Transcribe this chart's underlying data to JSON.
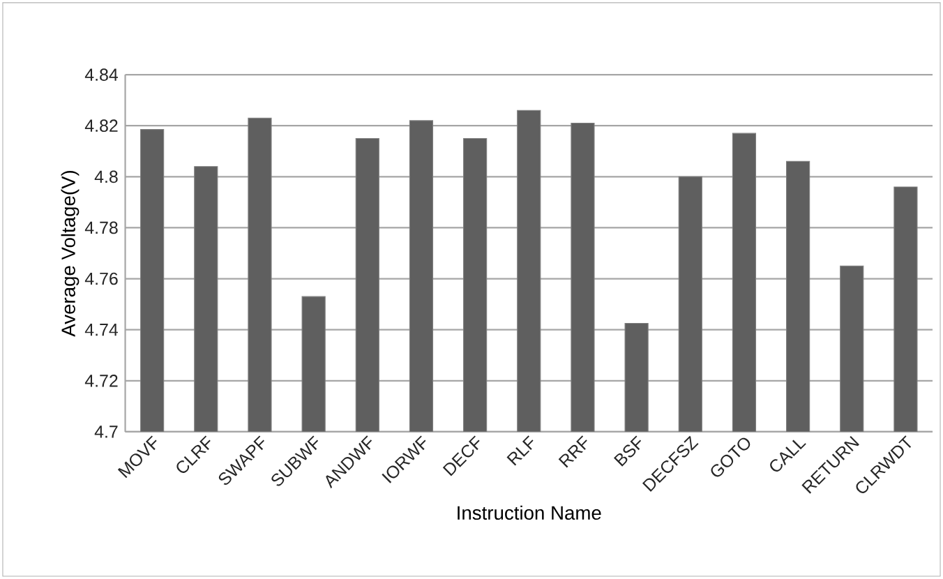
{
  "chart_data": {
    "type": "bar",
    "xlabel": "Instruction Name",
    "ylabel": "Average Voltage(V)",
    "categories": [
      "MOVF",
      "CLRF",
      "SWAPF",
      "SUBWF",
      "ANDWF",
      "IORWF",
      "DECF",
      "RLF",
      "RRF",
      "BSF",
      "DECFSZ",
      "GOTO",
      "CALL",
      "RETURN",
      "CLRWDT"
    ],
    "values": [
      4.8185,
      4.804,
      4.823,
      4.753,
      4.815,
      4.822,
      4.815,
      4.826,
      4.821,
      4.7425,
      4.8,
      4.817,
      4.806,
      4.765,
      4.796
    ],
    "color": "#5f5f5f",
    "ylim": [
      4.7,
      4.84
    ],
    "yticks": [
      4.7,
      4.72,
      4.74,
      4.76,
      4.78,
      4.8,
      4.82,
      4.84
    ],
    "grid": "y"
  }
}
